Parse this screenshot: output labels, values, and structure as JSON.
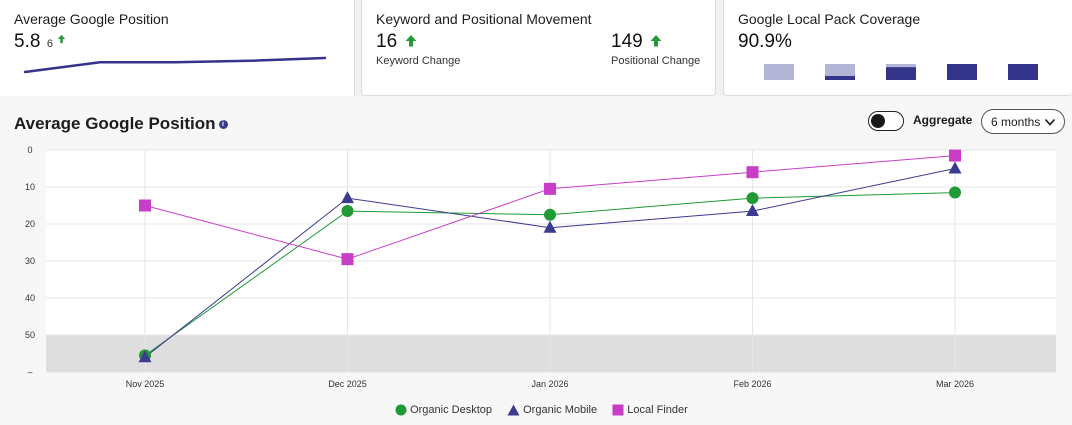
{
  "cards": {
    "avg_position": {
      "title": "Average Google Position",
      "value": "5.8",
      "change": "6"
    },
    "keyword_movement": {
      "title": "Keyword and Positional Movement",
      "keyword_value": "16",
      "keyword_label": "Keyword Change",
      "positional_value": "149",
      "positional_label": "Positional Change"
    },
    "local_pack": {
      "title": "Google Local Pack Coverage",
      "value": "90.9%",
      "mini_bars_fill": [
        0.0,
        0.25,
        0.8,
        1.0,
        1.0
      ]
    }
  },
  "chart_header": {
    "title": "Average Google Position",
    "aggregate_label": "Aggregate",
    "aggregate_on": false,
    "range_selected": "6 months"
  },
  "colors": {
    "organic_desktop": "#1f9a35",
    "organic_mobile": "#3b3b8f",
    "local_finder": "#c93ec9",
    "up_arrow": "#1f9a35",
    "navy": "#33348a",
    "light_navy": "#b3b5d6"
  },
  "chart_data": {
    "type": "line",
    "title": "Average Google Position",
    "categories": [
      "Nov 2025",
      "Dec 2025",
      "Jan 2026",
      "Feb 2026",
      "Mar 2026"
    ],
    "y_ticks": [
      "0",
      "10",
      "20",
      "30",
      "40",
      "50",
      "–"
    ],
    "ylim": [
      0,
      60
    ],
    "y_inverted": true,
    "shaded_band": [
      50,
      60
    ],
    "series": [
      {
        "name": "Organic Desktop",
        "marker": "circle",
        "values": [
          55.5,
          16.5,
          17.5,
          13,
          11.5
        ]
      },
      {
        "name": "Organic Mobile",
        "marker": "triangle",
        "values": [
          56,
          13,
          21,
          16.5,
          5
        ]
      },
      {
        "name": "Local Finder",
        "marker": "square",
        "values": [
          15,
          29.5,
          10.5,
          6,
          1.5
        ]
      }
    ],
    "legend_position": "bottom-center"
  },
  "sparkline": {
    "values": [
      5.3,
      4.6,
      4.6,
      4.5,
      4.3
    ]
  }
}
